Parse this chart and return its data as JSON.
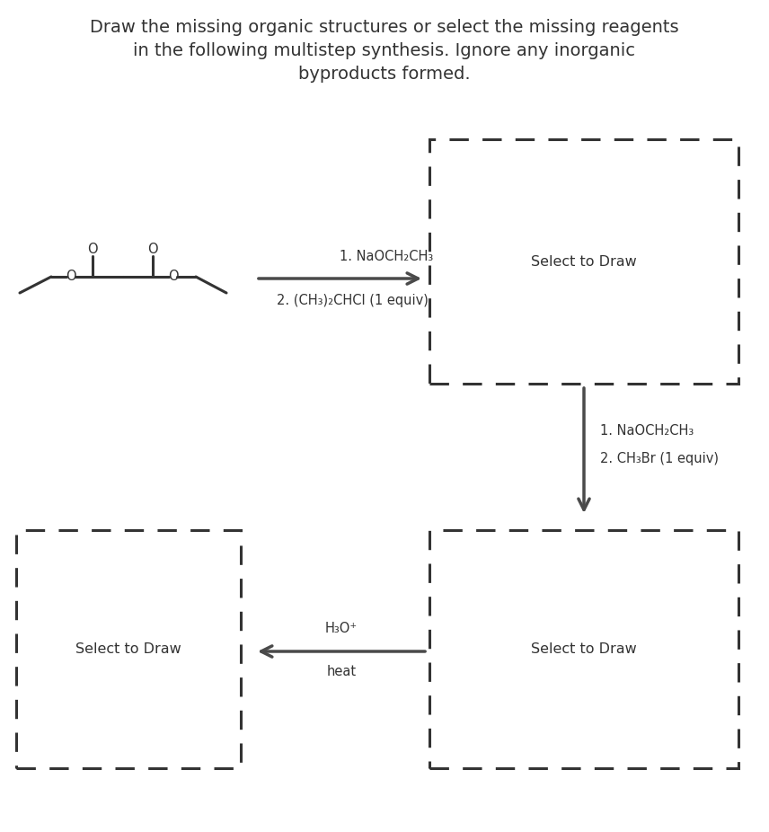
{
  "title_line1": "Draw the missing organic structures or select the missing reagents",
  "title_line2": "in the following multistep synthesis. Ignore any inorganic",
  "title_line3": "byproducts formed.",
  "background_color": "#ffffff",
  "text_color": "#333333",
  "arrow_color": "#4a4a4a",
  "dashed_box_color": "#333333",
  "reagent1_line1": "1. NaOCH₂CH₃",
  "reagent1_line2": "2. (CH₃)₂CHCl (1 equiv)",
  "reagent2_line1": "1. NaOCH₂CH₃",
  "reagent2_line2": "2. CH₃Br (1 equiv)",
  "reagent3_line1": "H₃O⁺",
  "reagent3_line2": "heat",
  "select_to_draw": "Select to Draw",
  "font_size_title": 14,
  "font_size_reagent": 10.5,
  "font_size_select": 11.5,
  "fig_width": 8.56,
  "fig_height": 9.26,
  "dpi": 100
}
